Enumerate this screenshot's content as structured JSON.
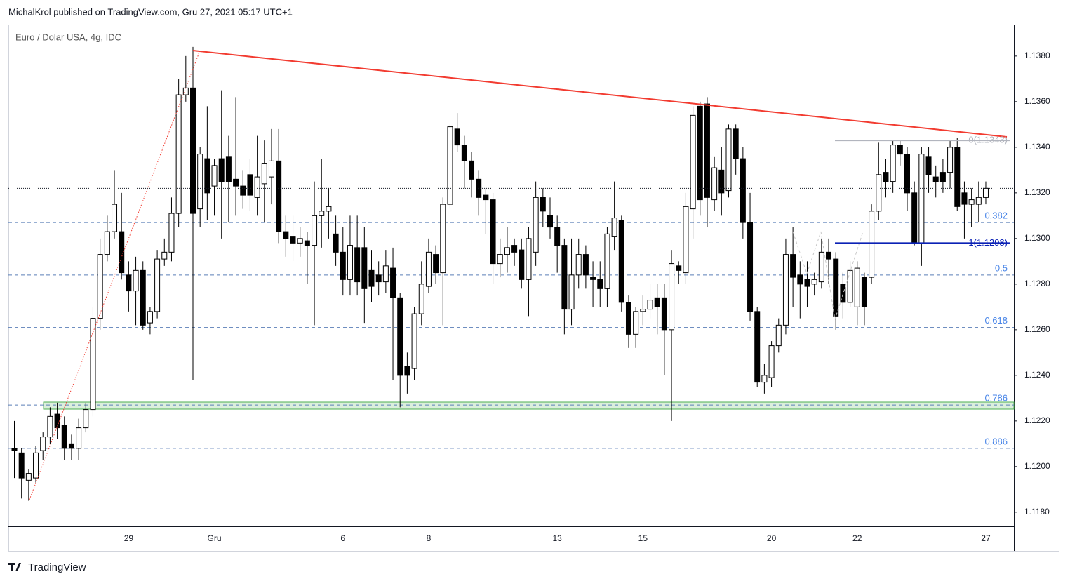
{
  "header": {
    "published": "MichalKrol published on TradingView.com, Gru 27, 2021 05:17 UTC+1"
  },
  "footer": {
    "brand": "TradingView"
  },
  "chart_data": {
    "type": "candlestick",
    "title": "Euro / Dolar USA, 4g, IDC",
    "categories": [
      null,
      null,
      null,
      null,
      null,
      null,
      null,
      null,
      null,
      null,
      null,
      null,
      null,
      null,
      null,
      null,
      "29",
      null,
      null,
      null,
      null,
      null,
      null,
      null,
      null,
      null,
      null,
      null,
      "Gru",
      null,
      null,
      null,
      null,
      null,
      null,
      null,
      null,
      null,
      null,
      null,
      null,
      null,
      null,
      null,
      null,
      null,
      "6",
      null,
      null,
      null,
      null,
      null,
      null,
      null,
      null,
      null,
      null,
      null,
      "8",
      null,
      null,
      null,
      null,
      null,
      null,
      null,
      null,
      null,
      null,
      null,
      null,
      null,
      null,
      null,
      null,
      null,
      "13",
      null,
      null,
      null,
      null,
      null,
      null,
      null,
      null,
      null,
      null,
      null,
      "15",
      null,
      null,
      null,
      null,
      null,
      null,
      null,
      null,
      null,
      null,
      null,
      null,
      null,
      null,
      null,
      null,
      null,
      "20",
      null,
      null,
      null,
      null,
      null,
      null,
      null,
      null,
      null,
      null,
      null,
      "22",
      null,
      null,
      null,
      null,
      null,
      null,
      null,
      null,
      null,
      null,
      null,
      null,
      null,
      null,
      null,
      null,
      null,
      "27"
    ],
    "open": [
      1.1208,
      1.1206,
      1.1194,
      1.1195,
      1.1207,
      1.1213,
      1.1223,
      1.1218,
      1.121,
      1.1208,
      1.1217,
      1.1225,
      1.1265,
      1.1293,
      1.1303,
      1.1303,
      1.1284,
      1.1277,
      1.1286,
      1.1263,
      1.1268,
      1.1291,
      1.1294,
      1.1311,
      1.1363,
      1.1366,
      1.1313,
      1.1335,
      1.1323,
      1.1335,
      1.1336,
      1.1326,
      1.1323,
      1.1328,
      1.1318,
      1.1324,
      1.1327,
      1.1334,
      1.1303,
      1.1301,
      1.1298,
      1.1299,
      1.1297,
      1.131,
      1.1312,
      1.1302,
      1.1294,
      1.1282,
      1.1296,
      1.1296,
      1.1286,
      1.1284,
      1.1281,
      1.1287,
      1.1274,
      1.1244,
      1.1243,
      1.1267,
      1.1279,
      1.1293,
      1.1285,
      1.1315,
      1.1348,
      1.1341,
      1.1334,
      1.1326,
      1.1319,
      1.1317,
      1.1289,
      1.1293,
      1.1297,
      1.1295,
      1.1282,
      1.1294,
      1.1318,
      1.131,
      1.1305,
      1.1297,
      1.1269,
      1.1284,
      1.1293,
      1.1283,
      1.1282,
      1.1278,
      1.1301,
      1.1308,
      1.1272,
      1.1258,
      1.1268,
      1.1269,
      1.1274,
      1.1274,
      1.126,
      1.1288,
      1.1285,
      1.1313,
      1.1358,
      1.1359,
      1.1317,
      1.133,
      1.1321,
      1.1348,
      1.1335,
      1.1307,
      1.1268,
      1.1237,
      1.1239,
      1.1253,
      1.1262,
      1.1293,
      1.1284,
      1.1282,
      1.128,
      1.1281,
      1.1294,
      1.1291,
      1.128,
      1.1272,
      1.127,
      1.1283,
      1.1283,
      1.1312,
      1.1329,
      1.1325,
      1.1341,
      1.1337,
      1.132,
      1.1298,
      1.1336,
      1.1327,
      1.1329,
      1.1329,
      1.134,
      1.132,
      1.1315,
      1.1315,
      1.1318
    ],
    "high": [
      1.122,
      1.1208,
      1.1199,
      1.1209,
      1.1215,
      1.1226,
      1.1228,
      1.1222,
      1.1214,
      1.1221,
      1.1228,
      1.127,
      1.13,
      1.131,
      1.133,
      1.132,
      1.129,
      1.1292,
      1.129,
      1.127,
      1.1295,
      1.13,
      1.1318,
      1.137,
      1.138,
      1.1384,
      1.134,
      1.1358,
      1.1335,
      1.1365,
      1.1345,
      1.1362,
      1.133,
      1.1335,
      1.1345,
      1.1343,
      1.1348,
      1.1348,
      1.131,
      1.131,
      1.1305,
      1.1303,
      1.1325,
      1.1335,
      1.1322,
      1.131,
      1.1305,
      1.131,
      1.131,
      1.1305,
      1.1295,
      1.129,
      1.1295,
      1.1296,
      1.1276,
      1.125,
      1.127,
      1.129,
      1.13,
      1.1297,
      1.1318,
      1.135,
      1.1355,
      1.1345,
      1.1338,
      1.133,
      1.1322,
      1.132,
      1.13,
      1.1305,
      1.13,
      1.13,
      1.1305,
      1.1325,
      1.1322,
      1.1318,
      1.131,
      1.13,
      1.13,
      1.13,
      1.1297,
      1.129,
      1.129,
      1.1305,
      1.1325,
      1.131,
      1.1275,
      1.127,
      1.1275,
      1.128,
      1.128,
      1.128,
      1.1295,
      1.129,
      1.132,
      1.1358,
      1.136,
      1.1362,
      1.1336,
      1.134,
      1.135,
      1.135,
      1.134,
      1.132,
      1.127,
      1.1245,
      1.1255,
      1.1265,
      1.13,
      1.1305,
      1.129,
      1.129,
      1.1285,
      1.13,
      1.13,
      1.1294,
      1.1285,
      1.129,
      1.129,
      1.1285,
      1.1315,
      1.1342,
      1.1335,
      1.1343,
      1.1343,
      1.134,
      1.1325,
      1.134,
      1.134,
      1.1332,
      1.1335,
      1.1343,
      1.1344,
      1.1325,
      1.1322,
      1.1325,
      1.1325
    ],
    "low": [
      1.1195,
      1.1186,
      1.1185,
      1.1193,
      1.1203,
      1.121,
      1.1212,
      1.1203,
      1.1203,
      1.1203,
      1.1215,
      1.1222,
      1.126,
      1.129,
      1.13,
      1.1282,
      1.1268,
      1.1262,
      1.126,
      1.1258,
      1.1265,
      1.1288,
      1.129,
      1.1305,
      1.136,
      1.1238,
      1.1305,
      1.1308,
      1.131,
      1.13,
      1.1307,
      1.131,
      1.1313,
      1.1312,
      1.131,
      1.1307,
      1.1315,
      1.1298,
      1.1292,
      1.129,
      1.1292,
      1.128,
      1.1262,
      1.1296,
      1.13,
      1.1288,
      1.1275,
      1.1275,
      1.1275,
      1.1263,
      1.1272,
      1.1275,
      1.1276,
      1.1238,
      1.1226,
      1.1232,
      1.1238,
      1.1262,
      1.1276,
      1.128,
      1.1262,
      1.1313,
      1.1338,
      1.1322,
      1.1318,
      1.131,
      1.1302,
      1.128,
      1.1283,
      1.1285,
      1.1288,
      1.1278,
      1.1266,
      1.1288,
      1.1305,
      1.13,
      1.1285,
      1.1258,
      1.1262,
      1.1278,
      1.1278,
      1.127,
      1.127,
      1.127,
      1.1295,
      1.1268,
      1.1252,
      1.1252,
      1.1262,
      1.1265,
      1.1258,
      1.124,
      1.122,
      1.128,
      1.128,
      1.13,
      1.131,
      1.1305,
      1.1312,
      1.131,
      1.1318,
      1.1328,
      1.13,
      1.1264,
      1.1235,
      1.1232,
      1.1235,
      1.125,
      1.1258,
      1.127,
      1.1265,
      1.127,
      1.1275,
      1.1278,
      1.128,
      1.126,
      1.1265,
      1.127,
      1.1262,
      1.1262,
      1.128,
      1.1308,
      1.1318,
      1.132,
      1.1332,
      1.1312,
      1.1297,
      1.1288,
      1.132,
      1.1318,
      1.132,
      1.1322,
      1.1312,
      1.13,
      1.1305,
      1.1307,
      1.1315
    ],
    "close": [
      1.1207,
      1.1195,
      1.1197,
      1.1206,
      1.1213,
      1.1222,
      1.1217,
      1.1208,
      1.1208,
      1.1217,
      1.1225,
      1.1265,
      1.1293,
      1.1303,
      1.1315,
      1.1285,
      1.1277,
      1.1286,
      1.1262,
      1.1268,
      1.1291,
      1.1294,
      1.1311,
      1.1363,
      1.1366,
      1.1311,
      1.1337,
      1.132,
      1.1332,
      1.1325,
      1.1325,
      1.1323,
      1.1319,
      1.1319,
      1.1327,
      1.1333,
      1.1334,
      1.1303,
      1.13,
      1.1298,
      1.13,
      1.1297,
      1.131,
      1.1312,
      1.1314,
      1.1294,
      1.1282,
      1.1297,
      1.1281,
      1.1278,
      1.1279,
      1.1281,
      1.1288,
      1.1274,
      1.124,
      1.124,
      1.1267,
      1.128,
      1.1294,
      1.1285,
      1.1315,
      1.1349,
      1.1341,
      1.1334,
      1.1326,
      1.1318,
      1.1317,
      1.1289,
      1.1293,
      1.1296,
      1.1294,
      1.1282,
      1.13,
      1.1318,
      1.1312,
      1.1305,
      1.1297,
      1.1269,
      1.1284,
      1.1293,
      1.1284,
      1.1282,
      1.1278,
      1.1302,
      1.1309,
      1.1272,
      1.1258,
      1.1268,
      1.1269,
      1.1273,
      1.127,
      1.126,
      1.1289,
      1.1286,
      1.1314,
      1.1354,
      1.1317,
      1.1318,
      1.1331,
      1.132,
      1.1348,
      1.1335,
      1.1307,
      1.1268,
      1.1237,
      1.124,
      1.1253,
      1.1262,
      1.1293,
      1.1283,
      1.128,
      1.1279,
      1.1282,
      1.1294,
      1.1291,
      1.1266,
      1.1272,
      1.1286,
      1.1287,
      1.127,
      1.1312,
      1.1328,
      1.1325,
      1.1341,
      1.1337,
      1.132,
      1.1298,
      1.1337,
      1.1328,
      1.1325,
      1.1325,
      1.134,
      1.1314,
      1.1315,
      1.1317,
      1.1318,
      1.1322
    ],
    "up_color": "#ffffff",
    "down_color": "#000000",
    "ylim": [
      1.11738,
      1.13938
    ],
    "yticks": [
      {
        "value": 1.118,
        "label": "1.1180"
      },
      {
        "value": 1.12,
        "label": "1.1200"
      },
      {
        "value": 1.122,
        "label": "1.1220"
      },
      {
        "value": 1.124,
        "label": "1.1240"
      },
      {
        "value": 1.126,
        "label": "1.1260"
      },
      {
        "value": 1.128,
        "label": "1.1280"
      },
      {
        "value": 1.13,
        "label": "1.1300"
      },
      {
        "value": 1.132,
        "label": "1.1320"
      },
      {
        "value": 1.134,
        "label": "1.1340"
      },
      {
        "value": 1.136,
        "label": "1.1360"
      },
      {
        "value": 1.138,
        "label": "1.1380"
      }
    ],
    "fib_levels": [
      {
        "level": 0.382,
        "price": 1.1307
      },
      {
        "level": 0.5,
        "price": 1.1284
      },
      {
        "level": 0.618,
        "price": 1.1261
      },
      {
        "level": 0.786,
        "price": 1.1227
      },
      {
        "level": 0.886,
        "price": 1.1208
      }
    ],
    "annotations": [
      {
        "text": "0(1.1343)",
        "price": 1.1343,
        "color": "#b2b5be"
      },
      {
        "text": "1(1.1298)",
        "price": 1.1298,
        "color": "#0b21b5"
      }
    ]
  }
}
